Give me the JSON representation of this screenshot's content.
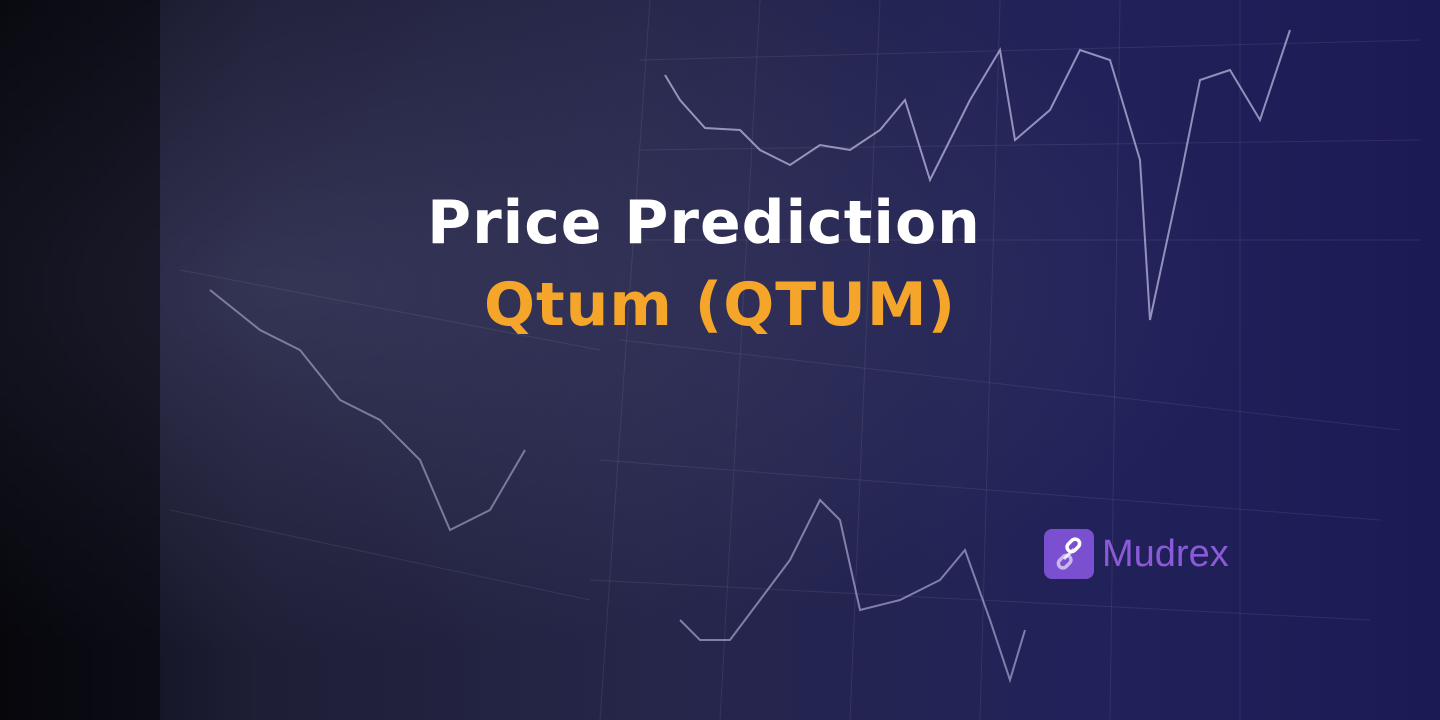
{
  "banner": {
    "title": "Price Prediction",
    "subtitle": "Qtum (QTUM)",
    "title_color": "#ffffff",
    "subtitle_color": "#f5a62a"
  },
  "brand": {
    "name": "Mudrex",
    "logo_icon": "chain-link-icon",
    "color": "#7a4fd0"
  }
}
